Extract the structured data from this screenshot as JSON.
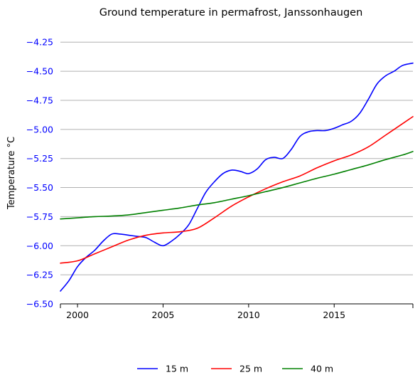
{
  "chart_data": {
    "type": "line",
    "title": "Ground temperature in permafrost, Janssonhaugen",
    "ylabel": "Temperature °C",
    "xlabel": "",
    "xlim": [
      1999.0,
      2019.6
    ],
    "ylim": [
      -6.5,
      -4.12
    ],
    "x_ticks": [
      2000,
      2005,
      2010,
      2015
    ],
    "y_ticks": [
      -6.5,
      -6.25,
      -6.0,
      -5.75,
      -5.5,
      -5.25,
      -5.0,
      -4.75,
      -4.5,
      -4.25
    ],
    "y_grid": true,
    "legend_position": "bottom-center",
    "colors": {
      "axis_text": "#0000ff"
    },
    "series": [
      {
        "name": "15 m",
        "color": "#0000ff",
        "x": [
          1999.0,
          1999.5,
          2000.0,
          2000.5,
          2001.0,
          2001.5,
          2002.0,
          2002.5,
          2003.0,
          2003.5,
          2004.0,
          2004.5,
          2005.0,
          2005.5,
          2006.0,
          2006.5,
          2007.0,
          2007.5,
          2008.0,
          2008.5,
          2009.0,
          2009.5,
          2010.0,
          2010.5,
          2011.0,
          2011.5,
          2012.0,
          2012.5,
          2013.0,
          2013.5,
          2014.0,
          2014.5,
          2015.0,
          2015.5,
          2016.0,
          2016.5,
          2017.0,
          2017.5,
          2018.0,
          2018.5,
          2019.0,
          2019.6
        ],
        "y": [
          -6.39,
          -6.3,
          -6.18,
          -6.1,
          -6.04,
          -5.96,
          -5.9,
          -5.9,
          -5.91,
          -5.92,
          -5.93,
          -5.97,
          -6.0,
          -5.96,
          -5.9,
          -5.82,
          -5.68,
          -5.54,
          -5.45,
          -5.38,
          -5.35,
          -5.36,
          -5.38,
          -5.34,
          -5.26,
          -5.24,
          -5.25,
          -5.17,
          -5.06,
          -5.02,
          -5.01,
          -5.01,
          -4.99,
          -4.96,
          -4.93,
          -4.86,
          -4.74,
          -4.61,
          -4.54,
          -4.5,
          -4.45,
          -4.43
        ]
      },
      {
        "name": "25 m",
        "color": "#ff0000",
        "x": [
          1999.0,
          2000.0,
          2001.0,
          2002.0,
          2003.0,
          2004.0,
          2005.0,
          2006.0,
          2007.0,
          2008.0,
          2009.0,
          2010.0,
          2011.0,
          2012.0,
          2013.0,
          2014.0,
          2015.0,
          2016.0,
          2017.0,
          2018.0,
          2019.0,
          2019.6
        ],
        "y": [
          -6.15,
          -6.13,
          -6.07,
          -6.01,
          -5.95,
          -5.91,
          -5.89,
          -5.88,
          -5.85,
          -5.76,
          -5.66,
          -5.58,
          -5.51,
          -5.45,
          -5.4,
          -5.33,
          -5.27,
          -5.22,
          -5.15,
          -5.05,
          -4.95,
          -4.89
        ]
      },
      {
        "name": "40 m",
        "color": "#008000",
        "x": [
          1999.0,
          2000.0,
          2001.0,
          2002.0,
          2003.0,
          2004.0,
          2005.0,
          2006.0,
          2007.0,
          2008.0,
          2009.0,
          2010.0,
          2011.0,
          2012.0,
          2013.0,
          2014.0,
          2015.0,
          2016.0,
          2017.0,
          2018.0,
          2019.0,
          2019.6
        ],
        "y": [
          -5.77,
          -5.76,
          -5.75,
          -5.745,
          -5.735,
          -5.715,
          -5.695,
          -5.675,
          -5.65,
          -5.63,
          -5.6,
          -5.57,
          -5.535,
          -5.5,
          -5.46,
          -5.42,
          -5.385,
          -5.345,
          -5.305,
          -5.26,
          -5.22,
          -5.19
        ]
      }
    ]
  }
}
